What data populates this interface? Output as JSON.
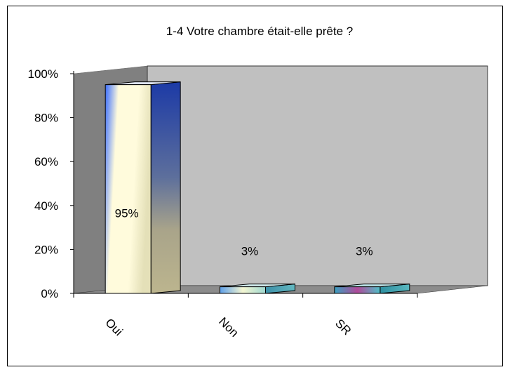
{
  "chart_data": {
    "type": "bar",
    "title": "1-4 Votre chambre était-elle prête ?",
    "categories": [
      "Oui",
      "Non",
      "SR"
    ],
    "values": [
      95,
      3,
      3
    ],
    "data_labels": [
      "95%",
      "3%",
      "3%"
    ],
    "ylim": [
      0,
      100
    ],
    "yticks": [
      0,
      20,
      40,
      60,
      80,
      100
    ],
    "ytick_labels": [
      "0%",
      "20%",
      "40%",
      "60%",
      "80%",
      "100%"
    ],
    "xlabel": "",
    "ylabel": "",
    "grid": false,
    "legend": "none",
    "style": "3d-column",
    "colors": {
      "wall": "#c0c0c0",
      "side_wall": "#808080",
      "floor": "#8c8c8c",
      "frame": "#000000"
    }
  }
}
